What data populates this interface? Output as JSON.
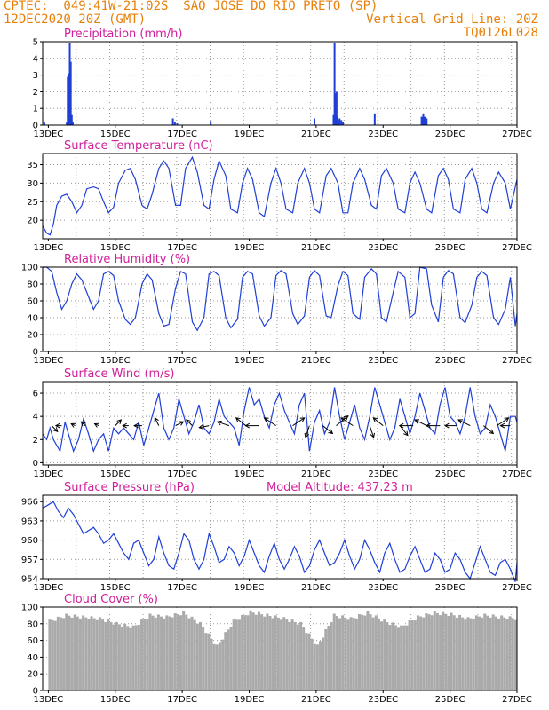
{
  "header": {
    "line1_left": "CPTEC:  049:41W-21:02S  SAO JOSE DO RIO PRETO (SP)",
    "line2_left": "12DEC2020 20Z (GMT)",
    "line2_right": "Vertical Grid Line: 20Z",
    "line3_right": "TQ0126L028"
  },
  "x_ticks": [
    "13DEC",
    "15DEC",
    "17DEC",
    "19DEC",
    "21DEC",
    "23DEC",
    "25DEC",
    "27DEC"
  ],
  "colors": {
    "line": "#1f3fd6",
    "cloud": "#aaaaaa",
    "title": "#d0209a",
    "header": "#e8800a"
  },
  "chart_data": [
    {
      "type": "bar",
      "title": "Precipitation (mm/h)",
      "xlim": [
        12.83,
        27.0
      ],
      "ylim": [
        0,
        5
      ],
      "yticks": [
        0,
        1,
        2,
        3,
        4,
        5
      ],
      "x": [
        12.88,
        13.55,
        13.58,
        13.61,
        13.64,
        13.67,
        13.7,
        13.73,
        16.72,
        16.78,
        16.85,
        17.85,
        20.95,
        21.52,
        21.55,
        21.58,
        21.61,
        21.64,
        21.67,
        21.7,
        21.75,
        21.8,
        22.75,
        24.15,
        24.2,
        24.25,
        24.3
      ],
      "values": [
        0.2,
        0.15,
        2.9,
        3.1,
        4.9,
        3.8,
        0.6,
        0.2,
        0.4,
        0.2,
        0.1,
        0.25,
        0.4,
        0.6,
        4.9,
        1.9,
        2.0,
        0.5,
        0.3,
        0.4,
        0.3,
        0.2,
        0.7,
        0.5,
        0.7,
        0.5,
        0.4
      ]
    },
    {
      "type": "line",
      "title": "Surface Temperature (nC)",
      "xlim": [
        12.83,
        27.0
      ],
      "ylim": [
        15,
        38
      ],
      "yticks": [
        20,
        25,
        30,
        35
      ],
      "x": [
        12.83,
        12.95,
        13.05,
        13.15,
        13.25,
        13.4,
        13.55,
        13.7,
        13.85,
        14.0,
        14.15,
        14.35,
        14.5,
        14.65,
        14.8,
        14.95,
        15.1,
        15.3,
        15.45,
        15.6,
        15.8,
        15.95,
        16.1,
        16.3,
        16.45,
        16.6,
        16.8,
        16.95,
        17.1,
        17.3,
        17.45,
        17.65,
        17.8,
        17.95,
        18.1,
        18.3,
        18.45,
        18.65,
        18.8,
        18.95,
        19.1,
        19.3,
        19.45,
        19.65,
        19.8,
        19.95,
        20.1,
        20.3,
        20.45,
        20.65,
        20.8,
        20.95,
        21.1,
        21.3,
        21.45,
        21.65,
        21.8,
        21.95,
        22.1,
        22.3,
        22.45,
        22.65,
        22.8,
        22.95,
        23.1,
        23.3,
        23.45,
        23.65,
        23.8,
        23.95,
        24.1,
        24.3,
        24.45,
        24.65,
        24.8,
        24.95,
        25.1,
        25.3,
        25.45,
        25.65,
        25.8,
        25.95,
        26.1,
        26.3,
        26.45,
        26.65,
        26.8,
        26.95,
        27.0
      ],
      "values": [
        18.5,
        16.5,
        16,
        19,
        24,
        26.5,
        27,
        25,
        22,
        24,
        28.5,
        29,
        28.5,
        25,
        22,
        23.5,
        30,
        33.5,
        34,
        31,
        24,
        23,
        27,
        34,
        36,
        34,
        24,
        24,
        34,
        37,
        33,
        24,
        23,
        31,
        36,
        32,
        23,
        22,
        30,
        34,
        31,
        22,
        21,
        30,
        34,
        30,
        23,
        22,
        30,
        34,
        30,
        23,
        22,
        32,
        34,
        30,
        22,
        22,
        30,
        34,
        31,
        24,
        23,
        32,
        34,
        30,
        23,
        22,
        30,
        33,
        30,
        23,
        22,
        32,
        34,
        31,
        23,
        22,
        31,
        34,
        30,
        23,
        22,
        30,
        33,
        30,
        23,
        29,
        31
      ]
    },
    {
      "type": "line",
      "title": "Relative Humidity (%)",
      "xlim": [
        12.83,
        27.0
      ],
      "ylim": [
        0,
        100
      ],
      "yticks": [
        0,
        20,
        40,
        60,
        80,
        100
      ],
      "x": [
        12.83,
        12.95,
        13.1,
        13.25,
        13.4,
        13.55,
        13.7,
        13.85,
        14.0,
        14.15,
        14.35,
        14.5,
        14.65,
        14.8,
        14.95,
        15.1,
        15.3,
        15.45,
        15.6,
        15.8,
        15.95,
        16.1,
        16.3,
        16.45,
        16.6,
        16.8,
        16.95,
        17.1,
        17.3,
        17.45,
        17.65,
        17.8,
        17.95,
        18.1,
        18.3,
        18.45,
        18.65,
        18.8,
        18.95,
        19.1,
        19.3,
        19.45,
        19.65,
        19.8,
        19.95,
        20.1,
        20.3,
        20.45,
        20.65,
        20.8,
        20.95,
        21.1,
        21.3,
        21.45,
        21.65,
        21.8,
        21.95,
        22.1,
        22.3,
        22.45,
        22.65,
        22.8,
        22.95,
        23.1,
        23.3,
        23.45,
        23.65,
        23.8,
        23.95,
        24.1,
        24.3,
        24.45,
        24.65,
        24.8,
        24.95,
        25.1,
        25.3,
        25.45,
        25.65,
        25.8,
        25.95,
        26.1,
        26.3,
        26.45,
        26.65,
        26.8,
        26.95,
        27.0
      ],
      "values": [
        100,
        100,
        95,
        70,
        50,
        60,
        80,
        92,
        85,
        70,
        50,
        60,
        92,
        95,
        90,
        60,
        38,
        32,
        40,
        80,
        92,
        85,
        45,
        30,
        32,
        75,
        95,
        92,
        35,
        25,
        40,
        92,
        95,
        90,
        40,
        28,
        38,
        88,
        95,
        92,
        42,
        30,
        40,
        90,
        96,
        92,
        45,
        32,
        42,
        88,
        96,
        90,
        42,
        40,
        78,
        95,
        90,
        45,
        38,
        88,
        98,
        92,
        40,
        35,
        70,
        95,
        88,
        40,
        45,
        100,
        98,
        55,
        35,
        88,
        96,
        92,
        40,
        34,
        55,
        88,
        95,
        90,
        40,
        32,
        50,
        88,
        30,
        45
      ]
    },
    {
      "type": "line",
      "title": "Surface Wind (m/s)",
      "xlim": [
        12.83,
        27.0
      ],
      "ylim": [
        -0.2,
        7
      ],
      "yticks": [
        0,
        2,
        4,
        6
      ],
      "x": [
        12.83,
        12.95,
        13.05,
        13.15,
        13.25,
        13.35,
        13.5,
        13.6,
        13.75,
        13.9,
        14.05,
        14.2,
        14.35,
        14.5,
        14.65,
        14.8,
        14.95,
        15.1,
        15.25,
        15.4,
        15.55,
        15.7,
        15.85,
        16.0,
        16.15,
        16.3,
        16.45,
        16.6,
        16.75,
        16.9,
        17.05,
        17.2,
        17.35,
        17.5,
        17.65,
        17.8,
        17.95,
        18.1,
        18.25,
        18.4,
        18.55,
        18.7,
        18.85,
        19.0,
        19.15,
        19.3,
        19.45,
        19.6,
        19.75,
        19.9,
        20.05,
        20.2,
        20.35,
        20.5,
        20.65,
        20.8,
        20.95,
        21.1,
        21.25,
        21.4,
        21.55,
        21.7,
        21.85,
        22.0,
        22.15,
        22.3,
        22.45,
        22.6,
        22.75,
        22.9,
        23.05,
        23.2,
        23.35,
        23.5,
        23.65,
        23.8,
        23.95,
        24.1,
        24.25,
        24.4,
        24.55,
        24.7,
        24.85,
        25.0,
        25.15,
        25.3,
        25.45,
        25.6,
        25.75,
        25.9,
        26.05,
        26.2,
        26.35,
        26.5,
        26.65,
        26.8,
        26.95,
        27.0
      ],
      "values": [
        2.5,
        2.0,
        3.0,
        2.0,
        1.5,
        1.0,
        3.5,
        2.5,
        1.0,
        2.0,
        3.8,
        2.5,
        1.0,
        2.0,
        2.5,
        1.0,
        3.0,
        2.5,
        3.0,
        2.5,
        2.0,
        3.5,
        1.5,
        3.0,
        4.5,
        6.0,
        3.0,
        2.0,
        3.0,
        5.5,
        4.0,
        2.5,
        3.5,
        5.0,
        3.0,
        2.5,
        3.5,
        5.5,
        4.0,
        3.5,
        3.0,
        1.5,
        4.5,
        6.5,
        5.0,
        5.5,
        4.0,
        3.0,
        5.0,
        6.0,
        4.5,
        3.5,
        2.5,
        5.0,
        6.0,
        1.0,
        3.5,
        4.5,
        2.5,
        3.5,
        6.5,
        4.0,
        2.0,
        3.5,
        5.0,
        3.0,
        2.0,
        4.0,
        6.5,
        5.0,
        3.5,
        2.0,
        3.0,
        5.5,
        4.0,
        2.5,
        4.0,
        6.0,
        4.5,
        3.0,
        2.5,
        5.0,
        6.5,
        4.0,
        3.5,
        2.5,
        4.0,
        6.5,
        4.0,
        2.5,
        3.0,
        5.0,
        4.0,
        2.5,
        1.0,
        4.0,
        4.0,
        3.5
      ],
      "arrows": [
        {
          "x": 13.1,
          "u": 0.3,
          "v": -0.3
        },
        {
          "x": 13.4,
          "u": -0.3,
          "v": 0.0
        },
        {
          "x": 13.8,
          "u": -0.2,
          "v": 0.1
        },
        {
          "x": 14.1,
          "u": -0.2,
          "v": 0.2
        },
        {
          "x": 14.5,
          "u": -0.2,
          "v": 0.1
        },
        {
          "x": 15.0,
          "u": 0.3,
          "v": 0.3
        },
        {
          "x": 15.4,
          "u": -0.3,
          "v": 0.0
        },
        {
          "x": 15.8,
          "u": -0.4,
          "v": 0.0
        },
        {
          "x": 16.3,
          "u": -0.2,
          "v": 0.4
        },
        {
          "x": 16.8,
          "u": 0.4,
          "v": 0.2
        },
        {
          "x": 17.3,
          "u": -0.3,
          "v": 0.3
        },
        {
          "x": 17.8,
          "u": -0.5,
          "v": -0.1
        },
        {
          "x": 18.4,
          "u": -0.6,
          "v": 0.2
        },
        {
          "x": 18.9,
          "u": -0.5,
          "v": 0.4
        },
        {
          "x": 19.3,
          "u": -0.7,
          "v": 0.0
        },
        {
          "x": 19.8,
          "u": -0.6,
          "v": 0.4
        },
        {
          "x": 20.3,
          "u": 0.6,
          "v": 0.4
        },
        {
          "x": 20.8,
          "u": -0.2,
          "v": -0.6
        },
        {
          "x": 21.2,
          "u": 0.5,
          "v": -0.4
        },
        {
          "x": 21.6,
          "u": 0.6,
          "v": 0.5
        },
        {
          "x": 22.1,
          "u": -0.6,
          "v": 0.4
        },
        {
          "x": 22.6,
          "u": 0.2,
          "v": -0.6
        },
        {
          "x": 23.0,
          "u": -0.5,
          "v": 0.4
        },
        {
          "x": 23.5,
          "u": 0.4,
          "v": -0.5
        },
        {
          "x": 23.9,
          "u": -0.7,
          "v": 0.0
        },
        {
          "x": 24.3,
          "u": -0.6,
          "v": 0.3
        },
        {
          "x": 24.7,
          "u": -0.7,
          "v": 0.0
        },
        {
          "x": 25.2,
          "u": -0.6,
          "v": 0.0
        },
        {
          "x": 25.6,
          "u": -0.6,
          "v": 0.3
        },
        {
          "x": 26.0,
          "u": 0.5,
          "v": -0.4
        },
        {
          "x": 26.4,
          "u": 0.6,
          "v": 0.4
        },
        {
          "x": 26.8,
          "u": -0.5,
          "v": 0.0
        }
      ]
    },
    {
      "type": "line",
      "title": "Surface Pressure (hPa)",
      "annotation": "Model Altitude: 437.23 m",
      "xlim": [
        12.83,
        27.0
      ],
      "ylim": [
        954,
        967
      ],
      "yticks": [
        954,
        957,
        960,
        963,
        966
      ],
      "x": [
        12.83,
        13.0,
        13.15,
        13.3,
        13.45,
        13.6,
        13.75,
        13.9,
        14.05,
        14.2,
        14.35,
        14.5,
        14.65,
        14.8,
        14.95,
        15.1,
        15.25,
        15.4,
        15.55,
        15.7,
        15.85,
        16.0,
        16.15,
        16.3,
        16.45,
        16.6,
        16.75,
        16.9,
        17.05,
        17.2,
        17.35,
        17.5,
        17.65,
        17.8,
        17.95,
        18.1,
        18.25,
        18.4,
        18.55,
        18.7,
        18.85,
        19.0,
        19.15,
        19.3,
        19.45,
        19.6,
        19.75,
        19.9,
        20.05,
        20.2,
        20.35,
        20.5,
        20.65,
        20.8,
        20.95,
        21.1,
        21.25,
        21.4,
        21.55,
        21.7,
        21.85,
        22.0,
        22.15,
        22.3,
        22.45,
        22.6,
        22.75,
        22.9,
        23.05,
        23.2,
        23.35,
        23.5,
        23.65,
        23.8,
        23.95,
        24.1,
        24.25,
        24.4,
        24.55,
        24.7,
        24.85,
        25.0,
        25.15,
        25.3,
        25.45,
        25.6,
        25.75,
        25.9,
        26.05,
        26.2,
        26.35,
        26.5,
        26.65,
        26.8,
        26.95,
        27.0
      ],
      "values": [
        965,
        965.5,
        966,
        964.5,
        963.5,
        965,
        964,
        962.5,
        961,
        961.5,
        962,
        961,
        959.5,
        960,
        961,
        959.5,
        958,
        957,
        959.5,
        960,
        958,
        956,
        957,
        960.5,
        958,
        956,
        955.5,
        958,
        961,
        960,
        957,
        955.5,
        957,
        961,
        959,
        956.5,
        957,
        959,
        958,
        956,
        957.5,
        960,
        958,
        956,
        955,
        957.5,
        959.5,
        957,
        955.5,
        957,
        959,
        957.5,
        955,
        956,
        958.5,
        960,
        958,
        956,
        956.5,
        958,
        960,
        957.5,
        955.5,
        957,
        960,
        958.5,
        956.5,
        955,
        958,
        959.5,
        957,
        955,
        955.5,
        957.5,
        959,
        957,
        955,
        955.5,
        958,
        957,
        955,
        955.5,
        958,
        957,
        955,
        954,
        956.5,
        959,
        957,
        955,
        954.5,
        956.5,
        957,
        955.5,
        953.5,
        956.5
      ]
    },
    {
      "type": "bar",
      "title": "Cloud Cover (%)",
      "xlim": [
        12.83,
        27.0
      ],
      "ylim": [
        0,
        100
      ],
      "yticks": [
        0,
        20,
        40,
        60,
        80,
        100
      ],
      "x": [
        13.0,
        13.5,
        14.0,
        14.5,
        15.0,
        15.5,
        16.0,
        16.5,
        17.0,
        17.5,
        18.0,
        18.5,
        19.0,
        19.5,
        20.0,
        20.5,
        21.0,
        21.5,
        22.0,
        22.5,
        23.0,
        23.5,
        24.0,
        24.5,
        25.0,
        25.5,
        26.0,
        26.5,
        27.0
      ],
      "values": [
        85,
        92,
        90,
        88,
        82,
        78,
        92,
        90,
        95,
        82,
        55,
        85,
        96,
        92,
        88,
        82,
        55,
        92,
        88,
        95,
        85,
        78,
        90,
        95,
        93,
        88,
        92,
        90,
        88
      ]
    }
  ]
}
